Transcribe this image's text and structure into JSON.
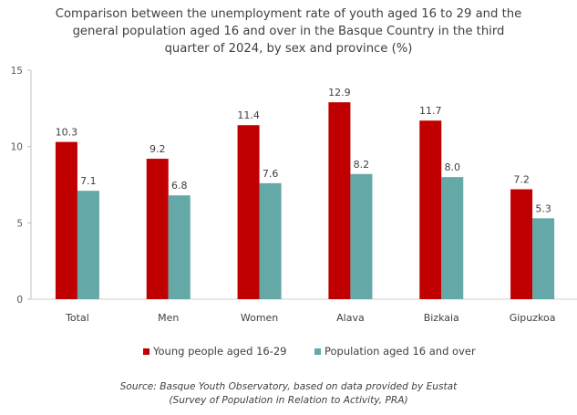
{
  "chart_data": {
    "type": "bar",
    "title_lines": [
      "Comparison between the unemployment rate of youth aged 16 to 29 and the",
      "general population aged 16 and over in the Basque Country in the third",
      "quarter of 2024, by sex and province (%)"
    ],
    "categories": [
      "Total",
      "Men",
      "Women",
      "Alava",
      "Bizkaia",
      "Gipuzkoa"
    ],
    "series": [
      {
        "name": "Young people aged 16-29",
        "color": "#C00000",
        "values": [
          10.3,
          9.2,
          11.4,
          12.9,
          11.7,
          7.2
        ],
        "labels": [
          "10.3",
          "9.2",
          "11.4",
          "12.9",
          "11.7",
          "7.2"
        ]
      },
      {
        "name": "Population aged 16 and over",
        "color": "#64A8A8",
        "values": [
          7.1,
          6.8,
          7.6,
          8.2,
          8.0,
          5.3
        ],
        "labels": [
          "7.1",
          "6.8",
          "7.6",
          "8.2",
          "8.0",
          "5.3"
        ]
      }
    ],
    "ylim": [
      0,
      15
    ],
    "yticks": [
      "0",
      "5",
      "10",
      "15"
    ],
    "xlabel": "",
    "ylabel": "",
    "legend_position": "bottom",
    "grid": false,
    "source_lines": [
      "Source: Basque Youth Observatory, based on data provided by Eustat",
      "(Survey of Population in Relation to Activity, PRA)"
    ]
  }
}
